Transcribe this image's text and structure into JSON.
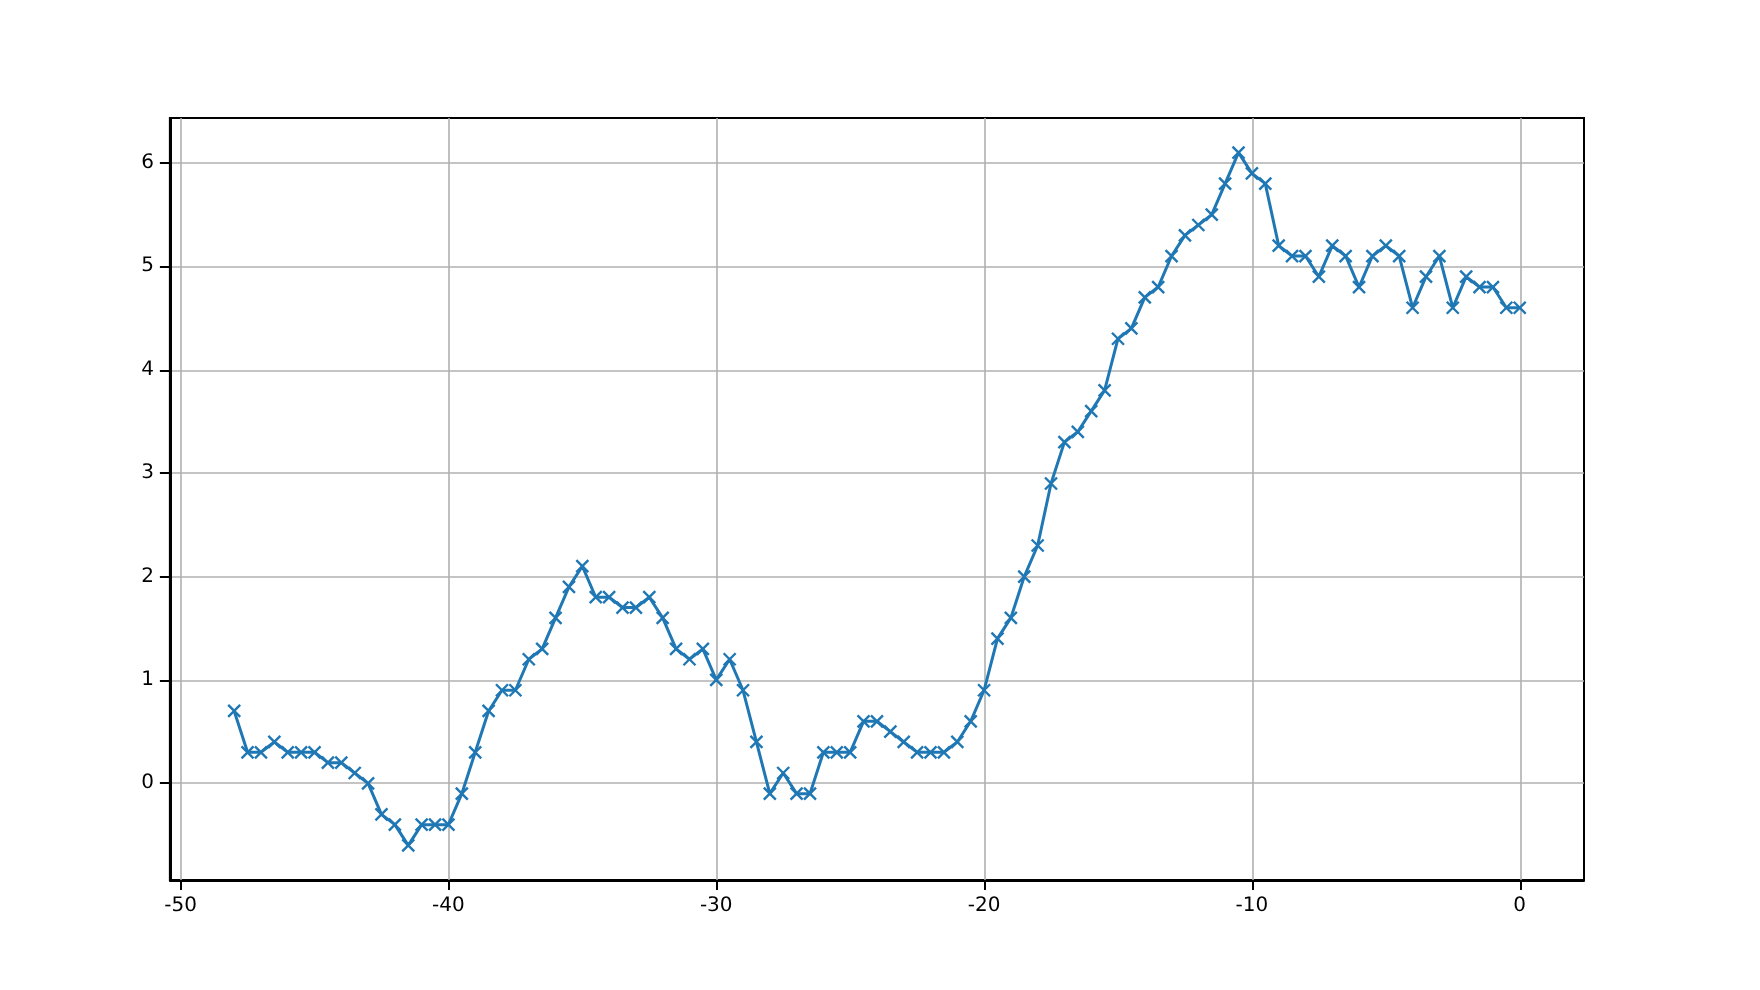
{
  "chart_data": {
    "type": "line",
    "marker": "cross",
    "grid": true,
    "line_style": "solid",
    "x": [
      -48,
      -47.5,
      -47,
      -46.5,
      -46,
      -45.5,
      -45,
      -44.5,
      -44,
      -43.5,
      -43,
      -42.5,
      -42,
      -41.5,
      -41,
      -40.5,
      -40,
      -39.5,
      -39,
      -38.5,
      -38,
      -37.5,
      -37,
      -36.5,
      -36,
      -35.5,
      -35,
      -34.5,
      -34,
      -33.5,
      -33,
      -32.5,
      -32,
      -31.5,
      -31,
      -30.5,
      -30,
      -29.5,
      -29,
      -28.5,
      -28,
      -27.5,
      -27,
      -26.5,
      -26,
      -25.5,
      -25,
      -24.5,
      -24,
      -23.5,
      -23,
      -22.5,
      -22,
      -21.5,
      -21,
      -20.5,
      -20,
      -19.5,
      -19,
      -18.5,
      -18,
      -17.5,
      -17,
      -16.5,
      -16,
      -15.5,
      -15,
      -14.5,
      -14,
      -13.5,
      -13,
      -12.5,
      -12,
      -11.5,
      -11,
      -10.5,
      -10,
      -9.5,
      -9,
      -8.5,
      -8,
      -7.5,
      -7,
      -6.5,
      -6,
      -5.5,
      -5,
      -4.5,
      -4,
      -3.5,
      -3,
      -2.5,
      -2,
      -1.5,
      -1,
      -0.5,
      0
    ],
    "series": [
      {
        "color": "#1f77b4",
        "values": [
          0.7,
          0.3,
          0.3,
          0.4,
          0.3,
          0.3,
          0.3,
          0.2,
          0.2,
          0.1,
          0.0,
          -0.3,
          -0.4,
          -0.6,
          -0.4,
          -0.4,
          -0.4,
          -0.1,
          0.3,
          0.7,
          0.9,
          0.9,
          1.2,
          1.3,
          1.6,
          1.9,
          2.1,
          1.8,
          1.8,
          1.7,
          1.7,
          1.8,
          1.6,
          1.3,
          1.2,
          1.3,
          1.0,
          1.2,
          0.9,
          0.4,
          -0.1,
          0.1,
          -0.1,
          -0.1,
          0.3,
          0.3,
          0.3,
          0.6,
          0.6,
          0.5,
          0.4,
          0.3,
          0.3,
          0.3,
          0.4,
          0.6,
          0.9,
          1.4,
          1.6,
          2.0,
          2.3,
          2.9,
          3.3,
          3.4,
          3.6,
          3.8,
          4.3,
          4.4,
          4.7,
          4.8,
          5.1,
          5.3,
          5.4,
          5.5,
          5.8,
          6.1,
          5.9,
          5.8,
          5.2,
          5.1,
          5.1,
          4.9,
          5.2,
          5.1,
          4.8,
          5.1,
          5.2,
          5.1,
          4.6,
          4.9,
          5.1,
          4.6,
          4.9,
          4.8,
          4.8,
          4.6,
          4.6
        ]
      }
    ],
    "xlim": [
      -50.4,
      2.4
    ],
    "xticks": [
      -50,
      -40,
      -30,
      -20,
      -10,
      0
    ],
    "ylim": [
      -0.935,
      6.435
    ],
    "yticks": [
      0,
      1,
      2,
      3,
      4,
      5,
      6
    ]
  }
}
